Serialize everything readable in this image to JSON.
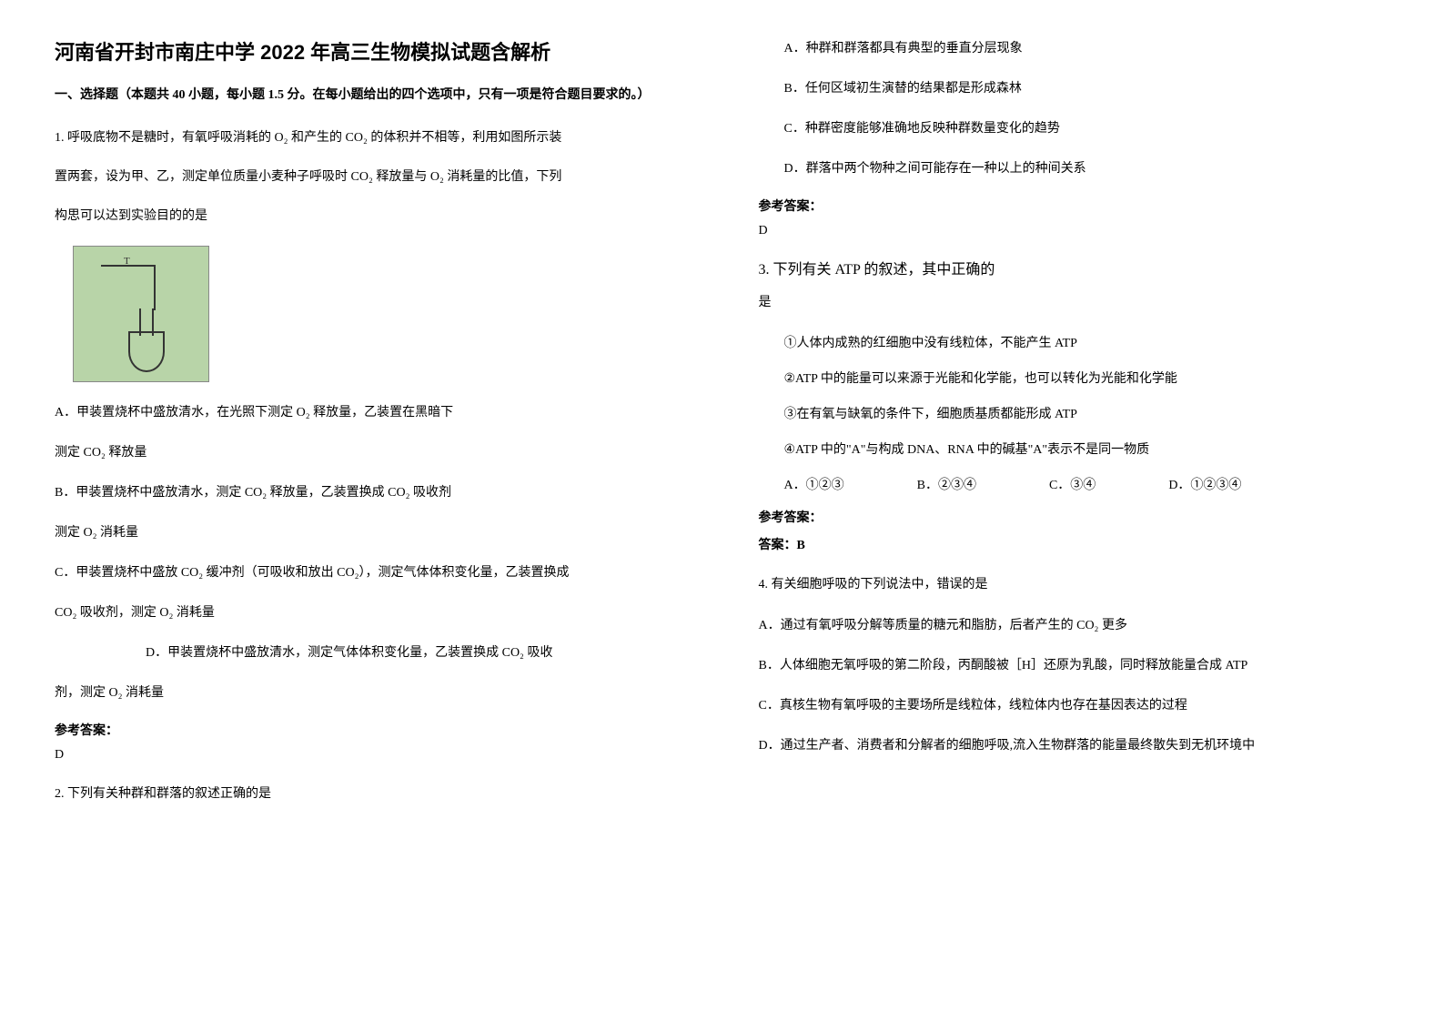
{
  "title": "河南省开封市南庄中学 2022 年高三生物模拟试题含解析",
  "sectionHeader": "一、选择题（本题共 40 小题，每小题 1.5 分。在每小题给出的四个选项中，只有一项是符合题目要求的。）",
  "q1": {
    "stem1": "1. 呼吸底物不是糖时，有氧呼吸消耗的 O₂ 和产生的 CO₂ 的体积并不相等，利用如图所示装",
    "stem2": "置两套，设为甲、乙，测定单位质量小麦种子呼吸时 CO₂ 释放量与 O₂ 消耗量的比值，下列",
    "stem3": "构思可以达到实验目的的是",
    "optA1": "A．甲装置烧杯中盛放清水，在光照下测定 O₂ 释放量，乙装置在黑暗下",
    "optA2": "测定 CO₂ 释放量",
    "optB1": "B．甲装置烧杯中盛放清水，测定 CO₂ 释放量，乙装置换成 CO₂ 吸收剂",
    "optB2": "测定 O₂ 消耗量",
    "optC1": "C．甲装置烧杯中盛放 CO₂ 缓冲剂（可吸收和放出 CO₂），测定气体体积变化量，乙装置换成",
    "optC2": "CO₂ 吸收剂，测定 O₂ 消耗量",
    "optD1": "D．甲装置烧杯中盛放清水，测定气体体积变化量，乙装置换成 CO₂ 吸收",
    "optD2": "剂，测定 O₂ 消耗量",
    "answerLabel": "参考答案：",
    "answerValue": "D"
  },
  "q2": {
    "stem": "2. 下列有关种群和群落的叙述正确的是",
    "optA": "A．种群和群落都具有典型的垂直分层现象",
    "optB": "B．任何区域初生演替的结果都是形成森林",
    "optC": "C．种群密度能够准确地反映种群数量变化的趋势",
    "optD": "D．群落中两个物种之间可能存在一种以上的种间关系",
    "answerLabel": "参考答案：",
    "answerValue": "D"
  },
  "q3": {
    "stem1": "3. 下列有关 ATP 的叙述，其中正确的",
    "stem2": "是",
    "sub1": "①人体内成熟的红细胞中没有线粒体，不能产生 ATP",
    "sub2": "②ATP 中的能量可以来源于光能和化学能，也可以转化为光能和化学能",
    "sub3": "③在有氧与缺氧的条件下，细胞质基质都能形成 ATP",
    "sub4": "④ATP 中的\"A\"与构成 DNA、RNA 中的碱基\"A\"表示不是同一物质",
    "choiceA": "A．①②③",
    "choiceB": "B．②③④",
    "choiceC": "C．③④",
    "choiceD": "D．①②③④",
    "answerLabel": "参考答案：",
    "answerValue": "答案：B"
  },
  "q4": {
    "stem": "4. 有关细胞呼吸的下列说法中，错误的是",
    "optA": "A．通过有氧呼吸分解等质量的糖元和脂肪，后者产生的 CO₂ 更多",
    "optB": "B．人体细胞无氧呼吸的第二阶段，丙酮酸被［H］还原为乳酸，同时释放能量合成 ATP",
    "optC": "C．真核生物有氧呼吸的主要场所是线粒体，线粒体内也存在基因表达的过程",
    "optD": "D．通过生产者、消费者和分解者的细胞呼吸,流入生物群落的能量最终散失到无机环境中"
  }
}
